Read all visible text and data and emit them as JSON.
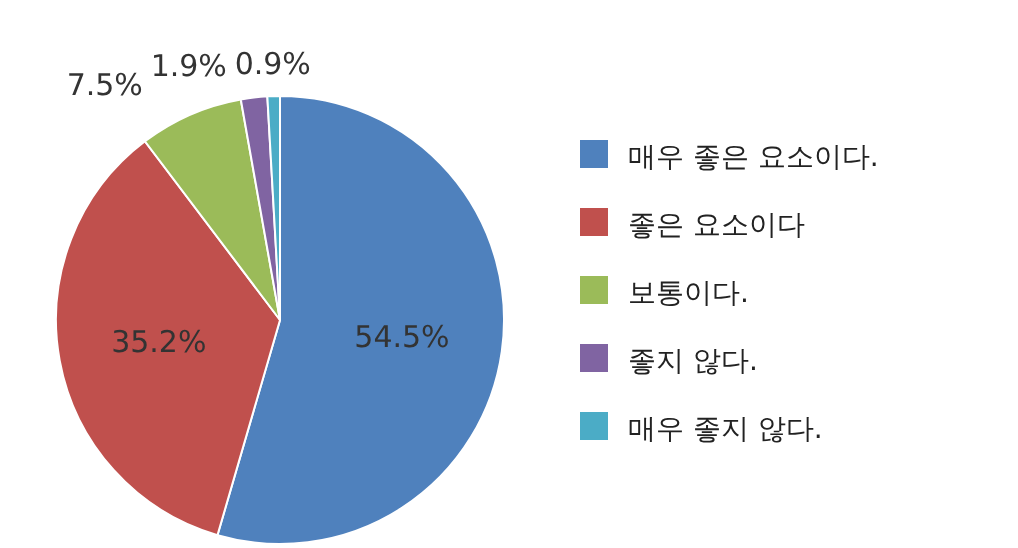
{
  "chart_data": {
    "type": "pie",
    "categories": [
      "매우 좋은 요소이다.",
      "좋은 요소이다",
      "보통이다.",
      "좋지 않다.",
      "매우 좋지 않다."
    ],
    "values": [
      54.5,
      35.2,
      7.5,
      1.9,
      0.9
    ],
    "colors": [
      "#4f81bd",
      "#c0504d",
      "#9bbb59",
      "#8064a2",
      "#4bacc6"
    ],
    "value_labels": [
      "54.5%",
      "35.2%",
      "7.5%",
      "1.9%",
      "0.9%"
    ],
    "legend": "right"
  }
}
